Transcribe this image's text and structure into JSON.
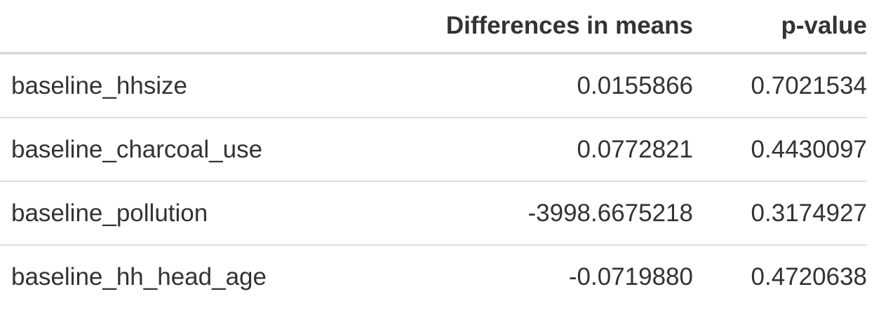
{
  "table": {
    "headers": [
      "",
      "Differences in means",
      "p-value"
    ],
    "rows": [
      {
        "variable": "baseline_hhsize",
        "difference": "0.0155866",
        "p_value": "0.7021534"
      },
      {
        "variable": "baseline_charcoal_use",
        "difference": "0.0772821",
        "p_value": "0.4430097"
      },
      {
        "variable": "baseline_pollution",
        "difference": "-3998.6675218",
        "p_value": "0.3174927"
      },
      {
        "variable": "baseline_hh_head_age",
        "difference": "-0.0719880",
        "p_value": "0.4720638"
      }
    ]
  },
  "colors": {
    "text": "#333333",
    "rule": "#dddddd",
    "background": "#ffffff"
  }
}
